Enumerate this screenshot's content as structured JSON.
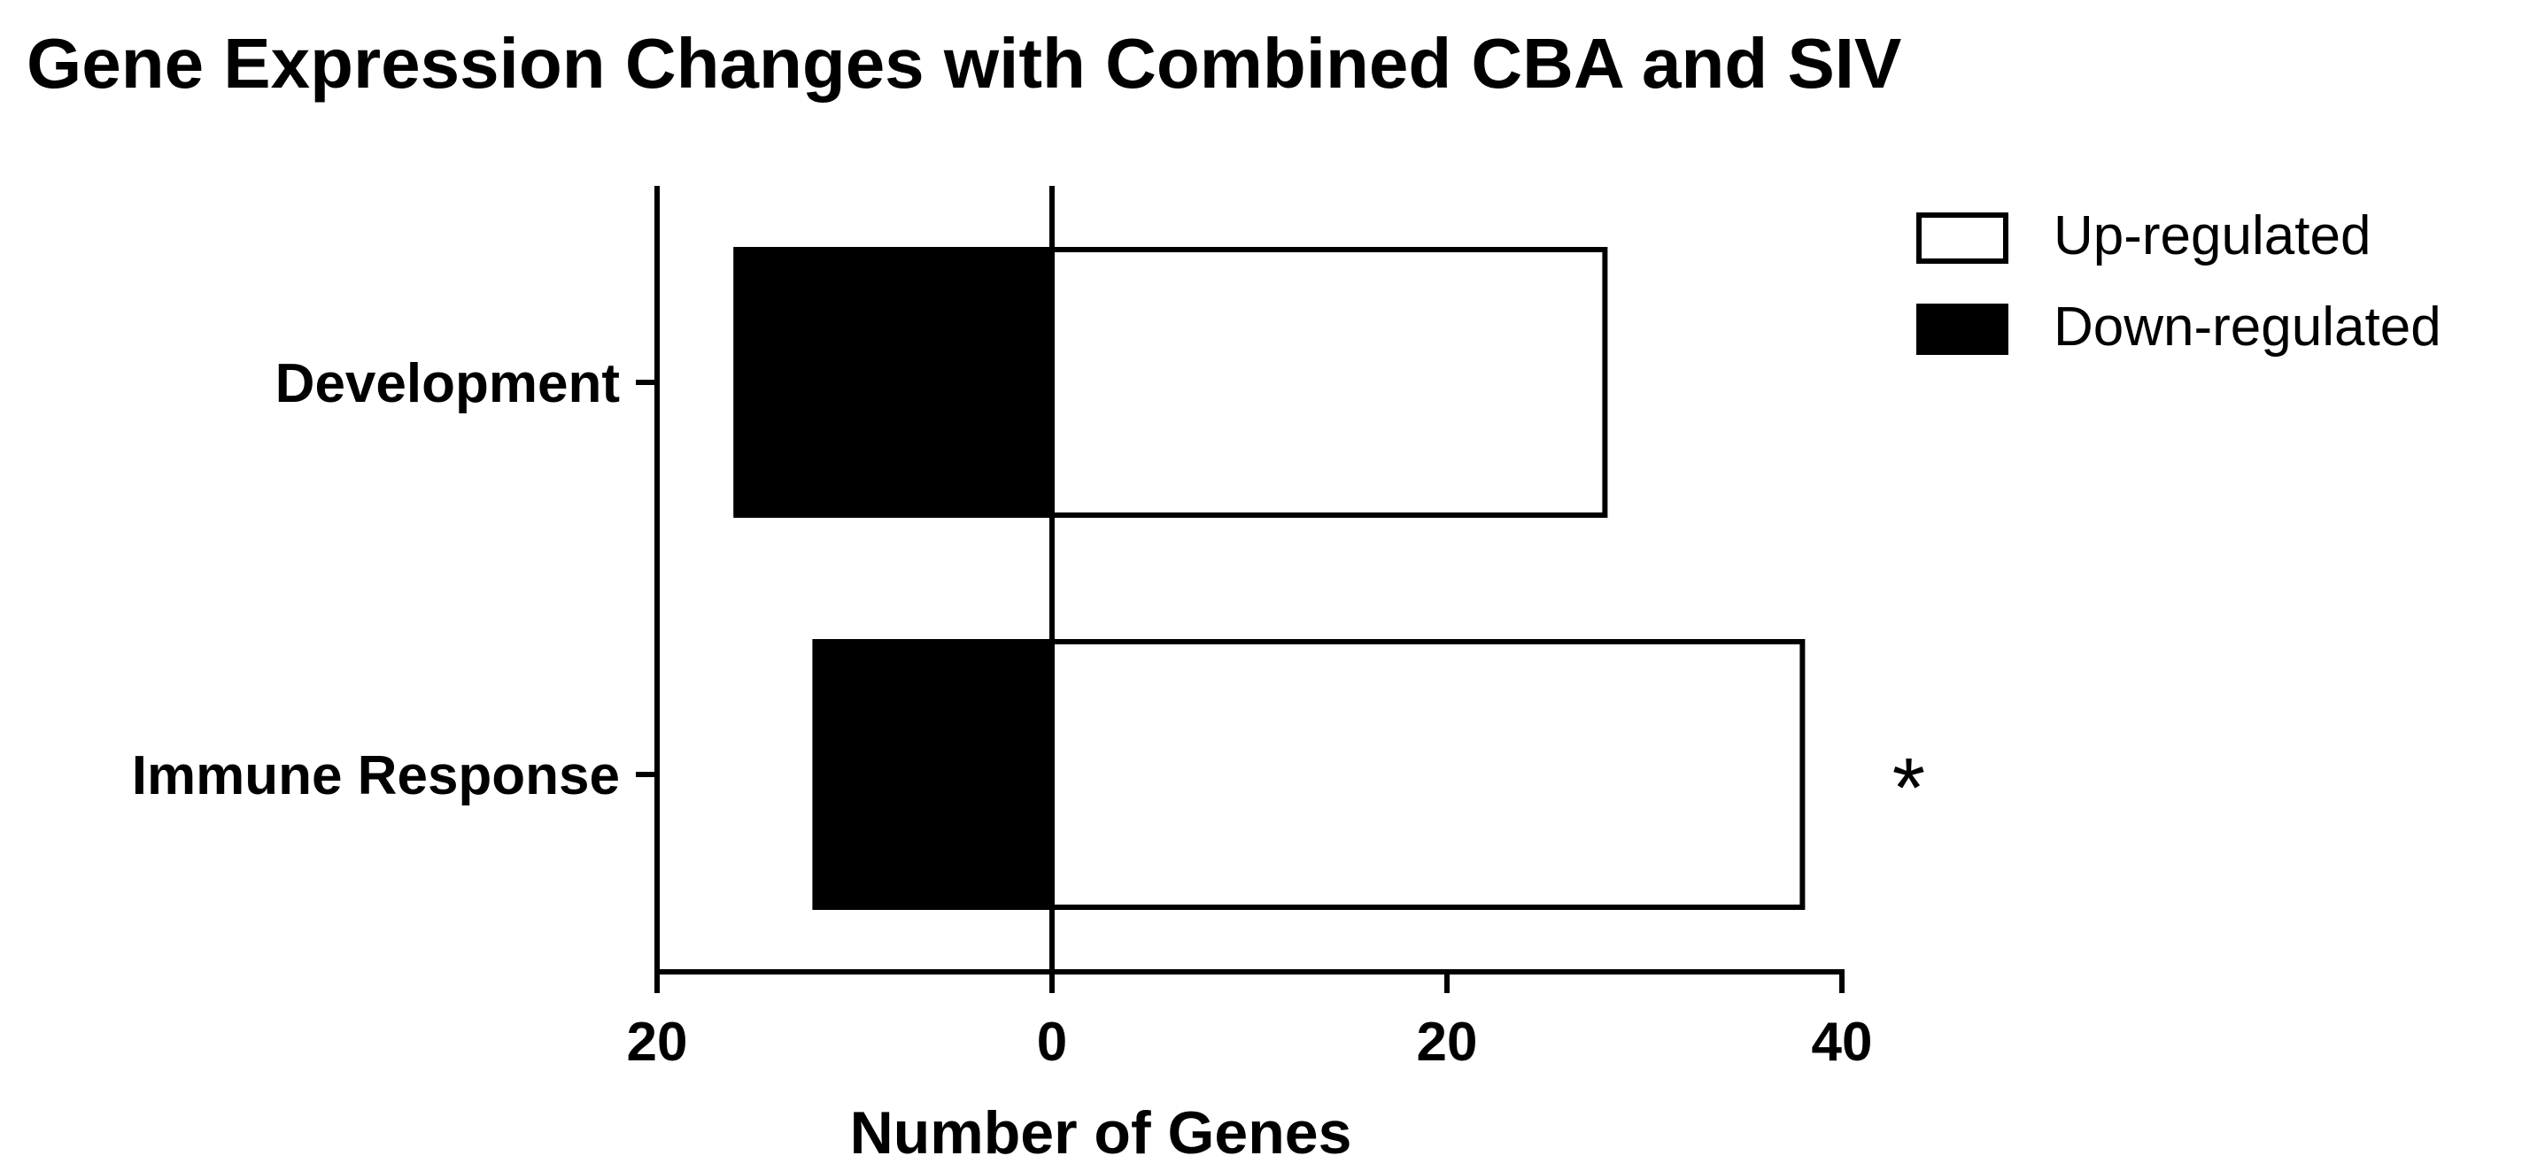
{
  "chart_data": {
    "type": "bar",
    "orientation": "horizontal",
    "stacking": "diverging",
    "title": "Gene Expression Changes with Combined CBA and SIV",
    "xlabel": "Number of Genes",
    "ylabel": "",
    "categories": [
      "Development",
      "Immune Response"
    ],
    "series": [
      {
        "name": "Up-regulated",
        "values": [
          28,
          38
        ],
        "color": "#ffffff"
      },
      {
        "name": "Down-regulated",
        "values": [
          16,
          12
        ],
        "color": "#000000"
      }
    ],
    "xlim": [
      -20,
      40
    ],
    "x_ticks": [
      -20,
      0,
      20,
      40
    ],
    "x_tick_labels": [
      "20",
      "0",
      "20",
      "40"
    ],
    "annotations": [
      {
        "category": "Immune Response",
        "text": "*"
      }
    ],
    "legend_position": "top-right",
    "grid": false
  }
}
